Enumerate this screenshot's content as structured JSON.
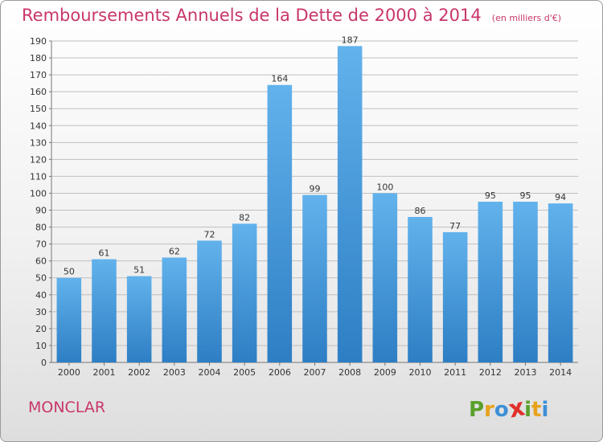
{
  "title": "Remboursements Annuels de la Dette de 2000 à 2014",
  "unit_label": "(en milliers d'€)",
  "commune": "MONCLAR",
  "logo": {
    "letters": [
      "P",
      "r",
      "o",
      "x",
      "i",
      "t",
      "i"
    ],
    "colors": [
      "#5aa02c",
      "#e8a21a",
      "#3d8fd6",
      "#e0302a",
      "#5aa02c",
      "#e8a21a",
      "#3d8fd6"
    ]
  },
  "colors": {
    "bar_top": "#62b2ec",
    "bar_bottom": "#2d7ec4",
    "title": "#c8366b",
    "grid": "#bfbfbf",
    "axis_text": "#333333"
  },
  "chart_data": {
    "type": "bar",
    "title": "Remboursements Annuels de la Dette de 2000 à 2014",
    "xlabel": "",
    "ylabel": "",
    "categories": [
      "2000",
      "2001",
      "2002",
      "2003",
      "2004",
      "2005",
      "2006",
      "2007",
      "2008",
      "2009",
      "2010",
      "2011",
      "2012",
      "2013",
      "2014"
    ],
    "values": [
      50,
      61,
      51,
      62,
      72,
      82,
      164,
      99,
      187,
      100,
      86,
      77,
      95,
      95,
      94
    ],
    "ylim": [
      0,
      190
    ],
    "yticks": [
      0,
      10,
      20,
      30,
      40,
      50,
      60,
      70,
      80,
      90,
      100,
      110,
      120,
      130,
      140,
      150,
      160,
      170,
      180,
      190
    ],
    "grid": true,
    "legend": "none"
  }
}
